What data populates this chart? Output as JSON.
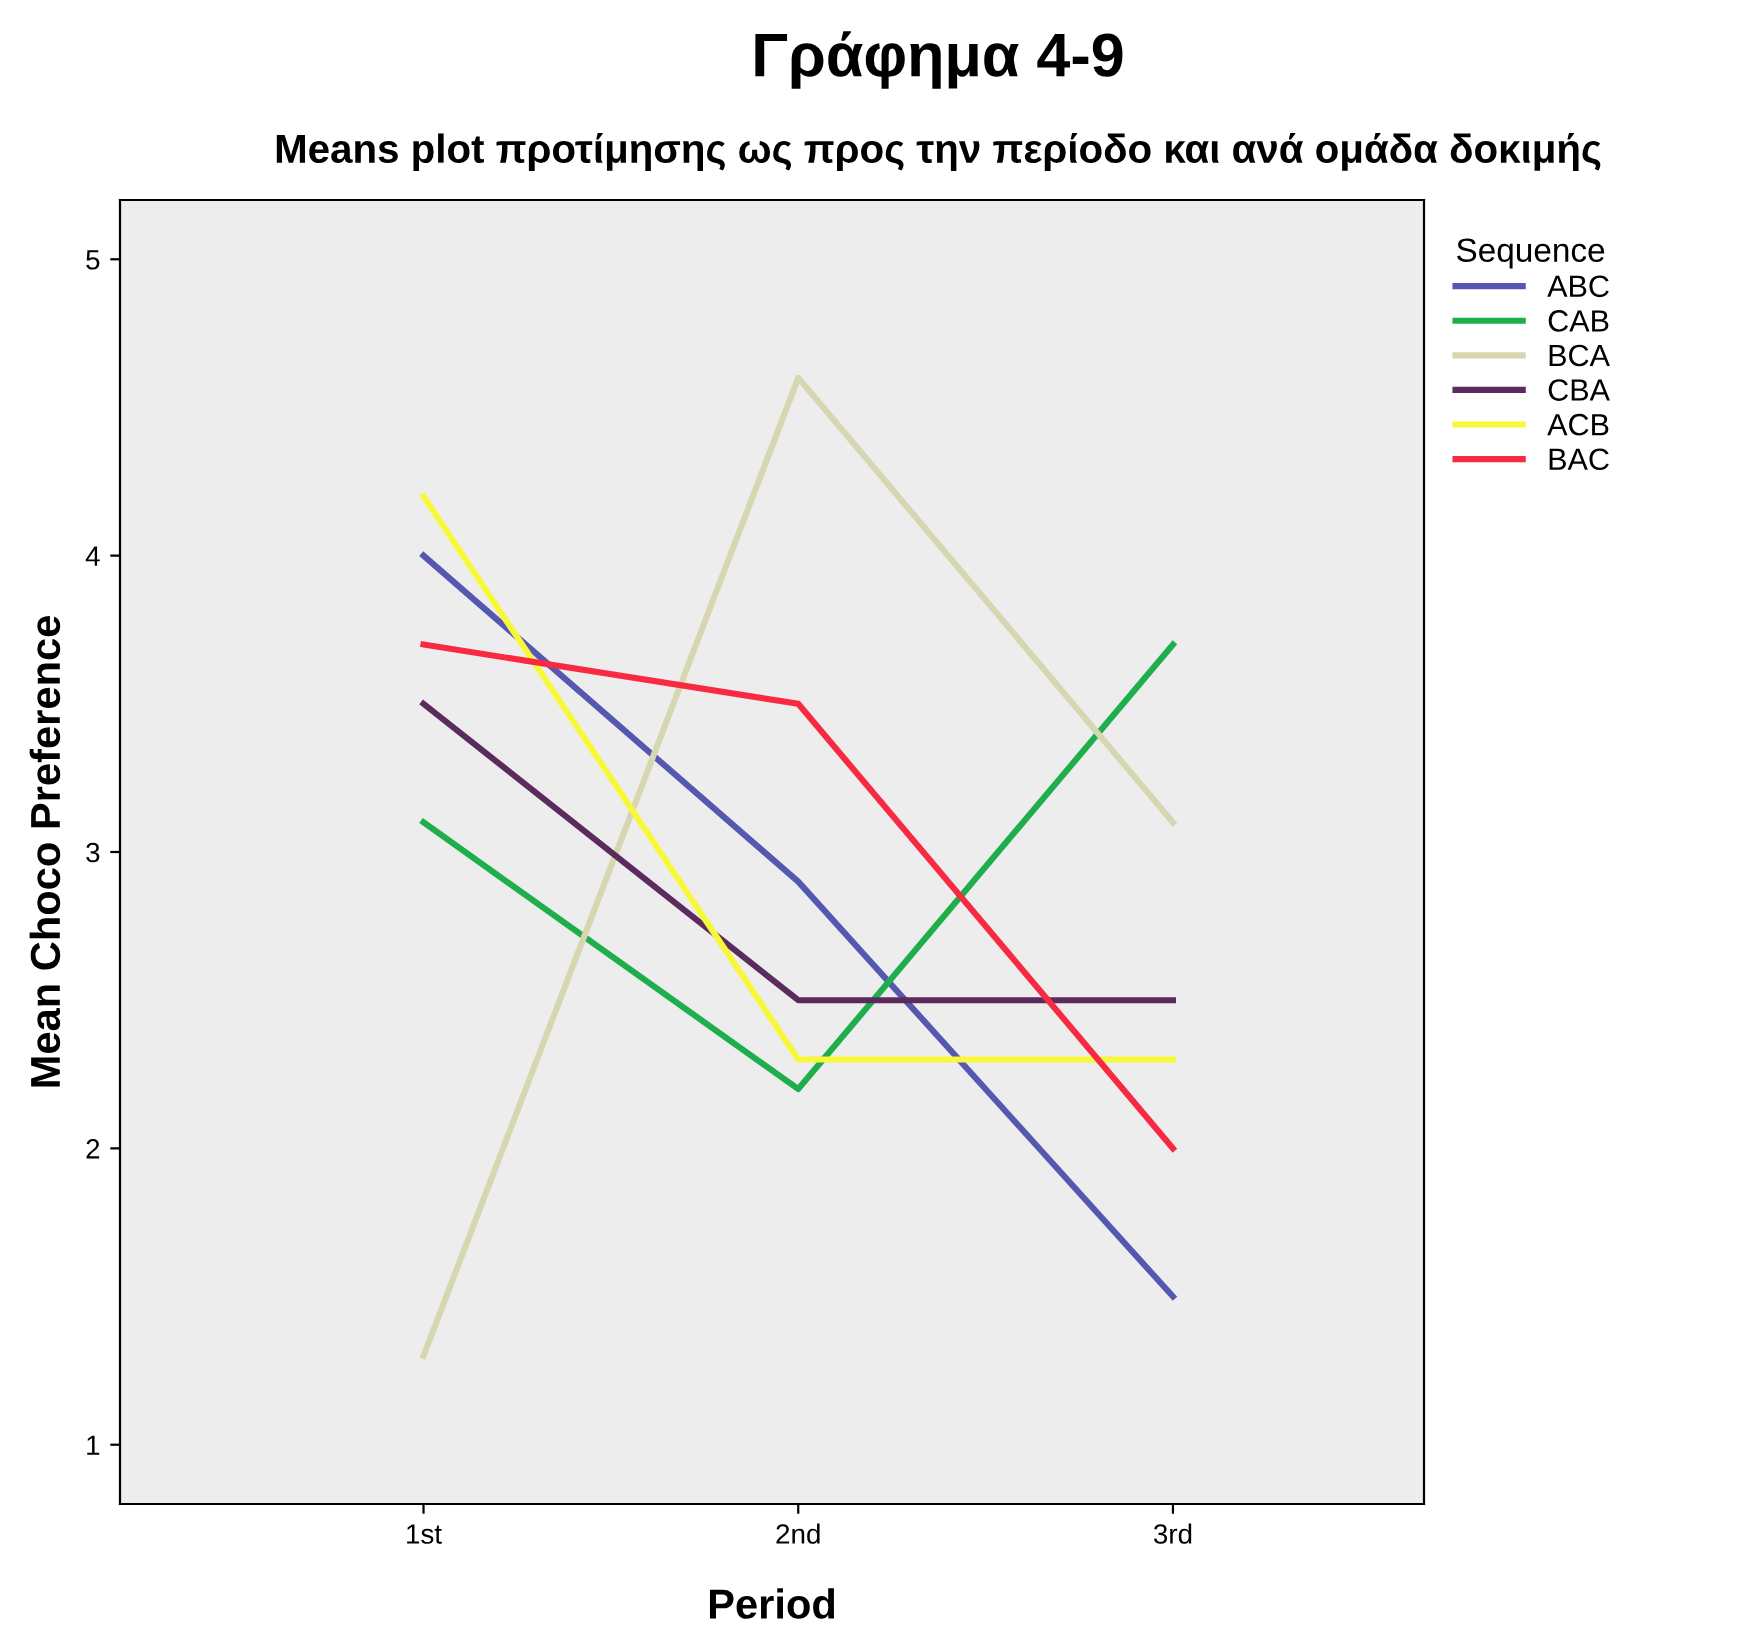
{
  "chart_data": {
    "type": "line",
    "title": "Γράφημα 4-9",
    "subtitle": "Means plot προτίμησης ως προς την περίοδο και ανά ομάδα δοκιμής",
    "xlabel": "Period",
    "ylabel": "Mean Choco Preference",
    "legend_title": "Sequence",
    "legend": "top right",
    "grid": false,
    "marker": "none",
    "line_style": "solid",
    "categories": [
      "1st",
      "2nd",
      "3rd"
    ],
    "ylim": [
      0.8,
      5.2
    ],
    "yticks": [
      1,
      2,
      3,
      4,
      5
    ],
    "series": [
      {
        "name": "ABC",
        "color": "#5557b0",
        "values": [
          4.0,
          2.9,
          1.5
        ]
      },
      {
        "name": "CAB",
        "color": "#1fae4c",
        "values": [
          3.1,
          2.2,
          3.7
        ]
      },
      {
        "name": "BCA",
        "color": "#d6d6b0",
        "values": [
          1.3,
          4.6,
          3.1
        ]
      },
      {
        "name": "CBA",
        "color": "#5c2b5e",
        "values": [
          3.5,
          2.5,
          2.5
        ]
      },
      {
        "name": "ACB",
        "color": "#f8f83a",
        "values": [
          4.2,
          2.3,
          2.3
        ]
      },
      {
        "name": "BAC",
        "color": "#f82a42",
        "values": [
          3.7,
          3.5,
          2.0
        ]
      }
    ]
  }
}
